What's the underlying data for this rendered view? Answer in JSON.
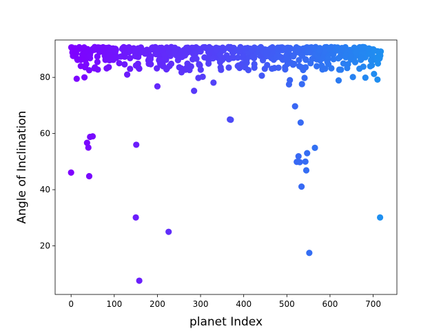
{
  "chart_data": {
    "type": "scatter",
    "title": "",
    "xlabel": "planet Index",
    "ylabel": "Angle of Inclination",
    "xlim": [
      -37,
      755
    ],
    "ylim": [
      2.7,
      93.3
    ],
    "xticks": [
      0,
      100,
      200,
      300,
      400,
      500,
      600,
      700
    ],
    "yticks": [
      20,
      40,
      60,
      80
    ],
    "grid": false,
    "legend": "none",
    "colormap": "rainbow",
    "color_range": [
      "#7f00ff",
      "#1e8ff0"
    ],
    "index_max": 718,
    "outliers": [
      {
        "x": 0,
        "y": 46.1
      },
      {
        "x": 13,
        "y": 79.5
      },
      {
        "x": 31,
        "y": 80.0
      },
      {
        "x": 37,
        "y": 56.7
      },
      {
        "x": 40,
        "y": 55.0
      },
      {
        "x": 42,
        "y": 44.8
      },
      {
        "x": 44,
        "y": 58.8
      },
      {
        "x": 50,
        "y": 59.0
      },
      {
        "x": 130,
        "y": 81.0
      },
      {
        "x": 150,
        "y": 30.1
      },
      {
        "x": 151,
        "y": 56.0
      },
      {
        "x": 158,
        "y": 7.6
      },
      {
        "x": 200,
        "y": 76.8
      },
      {
        "x": 226,
        "y": 25.0
      },
      {
        "x": 256,
        "y": 81.8
      },
      {
        "x": 285,
        "y": 75.2
      },
      {
        "x": 295,
        "y": 79.8
      },
      {
        "x": 305,
        "y": 80.2
      },
      {
        "x": 330,
        "y": 78.1
      },
      {
        "x": 368,
        "y": 65.0
      },
      {
        "x": 370,
        "y": 64.9
      },
      {
        "x": 442,
        "y": 80.6
      },
      {
        "x": 505,
        "y": 77.5
      },
      {
        "x": 507,
        "y": 79.0
      },
      {
        "x": 519,
        "y": 69.7
      },
      {
        "x": 523,
        "y": 49.9
      },
      {
        "x": 527,
        "y": 51.9
      },
      {
        "x": 530,
        "y": 49.8
      },
      {
        "x": 532,
        "y": 63.9
      },
      {
        "x": 534,
        "y": 41.1
      },
      {
        "x": 535,
        "y": 77.6
      },
      {
        "x": 541,
        "y": 79.8
      },
      {
        "x": 543,
        "y": 50.0
      },
      {
        "x": 545,
        "y": 46.9
      },
      {
        "x": 547,
        "y": 53.0
      },
      {
        "x": 552,
        "y": 17.5
      },
      {
        "x": 565,
        "y": 54.9
      },
      {
        "x": 620,
        "y": 78.9
      },
      {
        "x": 653,
        "y": 80.1
      },
      {
        "x": 682,
        "y": 79.9
      },
      {
        "x": 702,
        "y": 81.2
      },
      {
        "x": 710,
        "y": 79.2
      },
      {
        "x": 716,
        "y": 30.1
      }
    ],
    "dense_band": {
      "count": 650,
      "y_range": [
        82.5,
        90.8
      ],
      "typical_y": 88.5
    }
  }
}
